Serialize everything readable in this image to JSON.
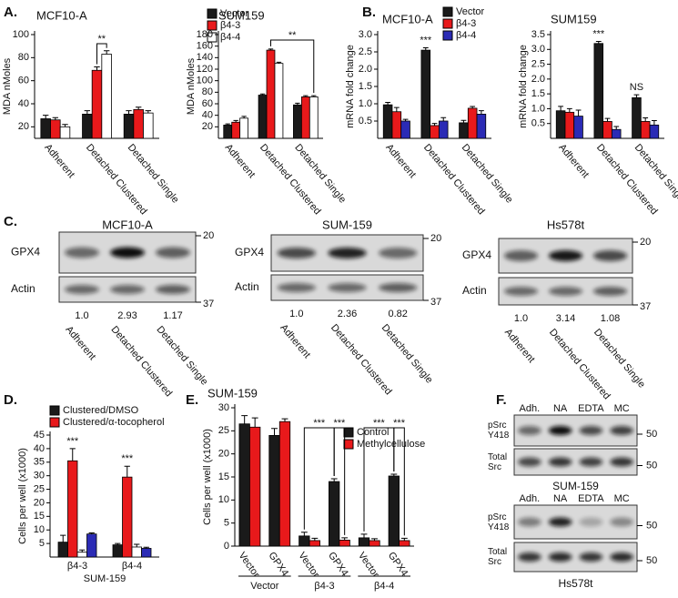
{
  "panel_labels": [
    "A.",
    "B.",
    "C.",
    "D.",
    "E.",
    "F."
  ],
  "chart_data": [
    {
      "type": "bar",
      "title": "MCF10-A",
      "ylabel": "MDA nMoles",
      "categories": [
        "Adherent",
        "Detached Clustered",
        "Detached Single"
      ],
      "series": [
        {
          "name": "Vector",
          "color": "#1a1a1a",
          "values": [
            27,
            31,
            31
          ],
          "errors": [
            3,
            3,
            3
          ]
        },
        {
          "name": "β4-3",
          "color": "#e8191b",
          "values": [
            26,
            69,
            35
          ],
          "errors": [
            2,
            3,
            2
          ]
        },
        {
          "name": "β4-4",
          "color": "#ffffff",
          "values": [
            20,
            83,
            32
          ],
          "errors": [
            2,
            3,
            2
          ]
        }
      ],
      "ylim": [
        10,
        100
      ],
      "yticks": [
        20,
        40,
        60,
        80,
        100
      ],
      "annotations": [
        "**"
      ]
    },
    {
      "type": "bar",
      "title": "SUM159",
      "ylabel": "MDA nMoles",
      "categories": [
        "Adherent",
        "Detached Clustered",
        "Detached Single"
      ],
      "series": [
        {
          "name": "Vector",
          "color": "#1a1a1a",
          "values": [
            23,
            75,
            58
          ],
          "errors": [
            2,
            2,
            3
          ]
        },
        {
          "name": "β4-3",
          "color": "#e8191b",
          "values": [
            28,
            153,
            72
          ],
          "errors": [
            3,
            2,
            2
          ]
        },
        {
          "name": "β4-4",
          "color": "#ffffff",
          "values": [
            35,
            130,
            72
          ],
          "errors": [
            3,
            2,
            2
          ]
        }
      ],
      "ylim": [
        0,
        180
      ],
      "yticks": [
        20,
        40,
        60,
        80,
        100,
        120,
        140,
        160,
        180
      ],
      "annotations": [
        "**"
      ]
    },
    {
      "type": "bar",
      "title": "MCF10-A",
      "ylabel": "mRNA fold change",
      "categories": [
        "Adherent",
        "Detached Clustered",
        "Detached Single"
      ],
      "series": [
        {
          "name": "Vector",
          "color": "#1a1a1a",
          "values": [
            0.97,
            2.55,
            0.45
          ],
          "errors": [
            0.07,
            0.07,
            0.07
          ]
        },
        {
          "name": "β4-3",
          "color": "#e8191b",
          "values": [
            0.77,
            0.37,
            0.87
          ],
          "errors": [
            0.12,
            0.06,
            0.05
          ]
        },
        {
          "name": "β4-4",
          "color": "#2b2bb5",
          "values": [
            0.5,
            0.5,
            0.7
          ],
          "errors": [
            0.05,
            0.1,
            0.1
          ]
        }
      ],
      "ylim": [
        0,
        3
      ],
      "yticks": [
        0.5,
        {
          "value": 1,
          "label": "1.0"
        },
        1.5,
        {
          "value": 2,
          "label": "2.0"
        },
        2.5,
        {
          "value": 3,
          "label": "3.0"
        }
      ],
      "annotations": [
        "***"
      ]
    },
    {
      "type": "bar",
      "title": "SUM159",
      "ylabel": "mRNA fold change",
      "categories": [
        "Adherent",
        "Detached Clustered",
        "Detached Single"
      ],
      "series": [
        {
          "name": "Vector",
          "color": "#1a1a1a",
          "values": [
            0.93,
            3.2,
            1.37
          ],
          "errors": [
            0.15,
            0.07,
            0.1
          ]
        },
        {
          "name": "β4-3",
          "color": "#e8191b",
          "values": [
            0.88,
            0.57,
            0.57
          ],
          "errors": [
            0.12,
            0.1,
            0.12
          ]
        },
        {
          "name": "β4-4",
          "color": "#2b2bb5",
          "values": [
            0.75,
            0.3,
            0.45
          ],
          "errors": [
            0.2,
            0.1,
            0.15
          ]
        }
      ],
      "ylim": [
        0,
        3.5
      ],
      "yticks": [
        0.5,
        {
          "value": 1,
          "label": "1.0"
        },
        1.5,
        {
          "value": 2,
          "label": "2.0"
        },
        2.5,
        {
          "value": 3,
          "label": "3.0"
        },
        3.5
      ],
      "annotations": [
        "***",
        "NS"
      ]
    },
    {
      "type": "bar",
      "ylabel": "Cells per well (x1000)",
      "xlabel": "SUM-159",
      "categories": [
        "β4-3",
        "β4-4"
      ],
      "series": [
        {
          "name": "Clustered/DMSO",
          "color": "#1a1a1a",
          "values": [
            5.5,
            4.5
          ],
          "errors": [
            2.5,
            0.5
          ]
        },
        {
          "name": "Clustered/α-tocopherol",
          "color": "#e8191b",
          "values": [
            35.5,
            29.5
          ],
          "errors": [
            4.5,
            4
          ]
        },
        {
          "name": null,
          "color": "#ffffff",
          "values": [
            1.8,
            3.7
          ],
          "errors": [
            0.8,
            1
          ]
        },
        {
          "name": null,
          "color": "#2b2bb5",
          "values": [
            8.5,
            3.2
          ],
          "errors": [
            0.4,
            0.4
          ]
        }
      ],
      "ylim": [
        0,
        45
      ],
      "yticks": [
        5,
        10,
        15,
        20,
        25,
        30,
        35,
        40,
        45
      ],
      "annotations": [
        "***",
        "***"
      ]
    },
    {
      "type": "bar",
      "title": "SUM-159",
      "ylabel": "Cells per well (x1000)",
      "categories": [
        "Vector",
        "GPX4",
        "Vector",
        "GPX4",
        "Vector",
        "GPX4"
      ],
      "groups": [
        "Vector",
        "β4-3",
        "β4-4"
      ],
      "series": [
        {
          "name": "Control",
          "color": "#1a1a1a",
          "values": [
            26.5,
            24,
            2.2,
            14,
            1.8,
            15.2
          ],
          "errors": [
            1.8,
            1.5,
            0.8,
            0.6,
            0.8,
            0.4
          ]
        },
        {
          "name": "Methylcellulose",
          "color": "#e8191b",
          "values": [
            25.8,
            27,
            1.2,
            1.3,
            1.2,
            1.2
          ],
          "errors": [
            2,
            0.6,
            0.5,
            0.5,
            0.4,
            0.5
          ]
        }
      ],
      "ylim": [
        0,
        30
      ],
      "yticks": [
        0,
        5,
        10,
        15,
        20,
        25,
        30
      ],
      "annotations": [
        "***",
        "***",
        "***",
        "***"
      ]
    }
  ],
  "blots": [
    {
      "title": "MCF10-A",
      "rows": [
        "GPX4",
        "Actin"
      ],
      "markers": [
        20,
        37
      ],
      "quantification": [
        "1.0",
        "2.93",
        "1.17"
      ],
      "lanes": [
        "Adherent",
        "Detached Clustered",
        "Detached Single"
      ]
    },
    {
      "title": "SUM-159",
      "rows": [
        "GPX4",
        "Actin"
      ],
      "markers": [
        20,
        37
      ],
      "quantification": [
        "1.0",
        "2.36",
        "0.82"
      ],
      "lanes": [
        "Adherent",
        "Detached Clustered",
        "Detached Single"
      ]
    },
    {
      "title": "Hs578t",
      "rows": [
        "GPX4",
        "Actin"
      ],
      "markers": [
        20,
        37
      ],
      "quantification": [
        "1.0",
        "3.14",
        "1.08"
      ],
      "lanes": [
        "Adherent",
        "Detached Clustered",
        "Detached Single"
      ]
    }
  ],
  "src_blots": [
    {
      "lanes": [
        "Adh.",
        "NA",
        "EDTA",
        "MC"
      ],
      "rows": [
        "pSrc Y418",
        "Total Src"
      ],
      "markers": [
        50,
        50
      ],
      "cell_line": "SUM-159"
    },
    {
      "lanes": [
        "Adh.",
        "NA",
        "EDTA",
        "MC"
      ],
      "rows": [
        "pSrc Y418",
        "Total Src"
      ],
      "markers": [
        50,
        50
      ],
      "cell_line": "Hs578t"
    }
  ]
}
